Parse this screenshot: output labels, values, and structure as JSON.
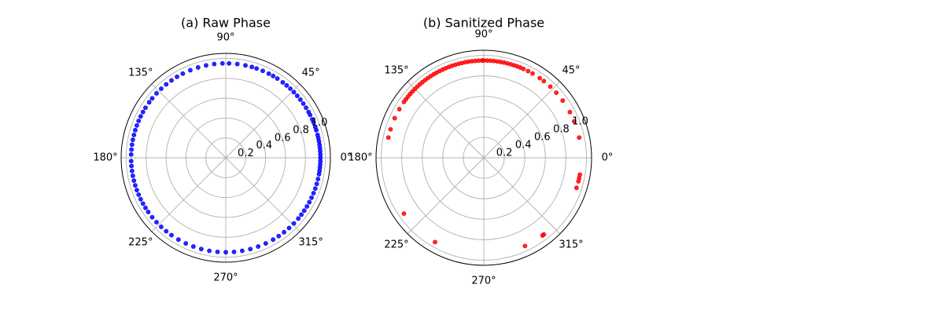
{
  "chart_data": [
    {
      "type": "scatter",
      "projection": "polar",
      "title": "(a) Raw Phase",
      "angle_ticks": [
        "0°",
        "45°",
        "90°",
        "135°",
        "180°",
        "225°",
        "270°",
        "315°"
      ],
      "radial_ticks": [
        "0.2",
        "0.4",
        "0.6",
        "0.8",
        "1.0"
      ],
      "rlim": [
        0,
        1.05
      ],
      "grid": true,
      "marker_color": "#0000ff",
      "series": [
        {
          "r": 0.95,
          "theta_deg": [
            0,
            2,
            4,
            6,
            8,
            10,
            12,
            14,
            17,
            19,
            22,
            24,
            27,
            29,
            32,
            35,
            38,
            41,
            44,
            47,
            50,
            53,
            57,
            60,
            63,
            67,
            71,
            74,
            78,
            83,
            88,
            92,
            97,
            102,
            107,
            112,
            117,
            121,
            125,
            129,
            133,
            137,
            141,
            144,
            148,
            151,
            154,
            157,
            160,
            163,
            166,
            169,
            172,
            175,
            178,
            182,
            185,
            188,
            191,
            194,
            197,
            200,
            203,
            206,
            209,
            212,
            215,
            219,
            223,
            227,
            231,
            235,
            240,
            245,
            250,
            255,
            260,
            265,
            270,
            275,
            280,
            285,
            290,
            295,
            300,
            304,
            308,
            312,
            316,
            320,
            323,
            326,
            329,
            332,
            335,
            338,
            341,
            344,
            347,
            350,
            352,
            354,
            356,
            358
          ]
        }
      ]
    },
    {
      "type": "scatter",
      "projection": "polar",
      "title": "(b) Sanitized Phase",
      "angle_ticks": [
        "0°",
        "45°",
        "90°",
        "135°",
        "180°",
        "225°",
        "270°",
        "315°"
      ],
      "radial_ticks": [
        "0.2",
        "0.4",
        "0.6",
        "0.8",
        "1.0"
      ],
      "rlim": [
        0,
        1.05
      ],
      "grid": true,
      "marker_color": "#ff0000",
      "series": [
        {
          "r": 0.95,
          "theta_deg": [
            12,
            22,
            28,
            36,
            42,
            47,
            52,
            55,
            60,
            63,
            66,
            68,
            70,
            72,
            74,
            76,
            78,
            80,
            82,
            84,
            86,
            88,
            90,
            91,
            93,
            95,
            97,
            99,
            101,
            103,
            105,
            107,
            109,
            111,
            113,
            115,
            117,
            119,
            121,
            123,
            125,
            127,
            129,
            131,
            133,
            135,
            137,
            139,
            141,
            143,
            145,
            150,
            156,
            163,
            168,
            215,
            240,
            295,
            307,
            308,
            342,
            346,
            348,
            350
          ]
        }
      ]
    }
  ]
}
